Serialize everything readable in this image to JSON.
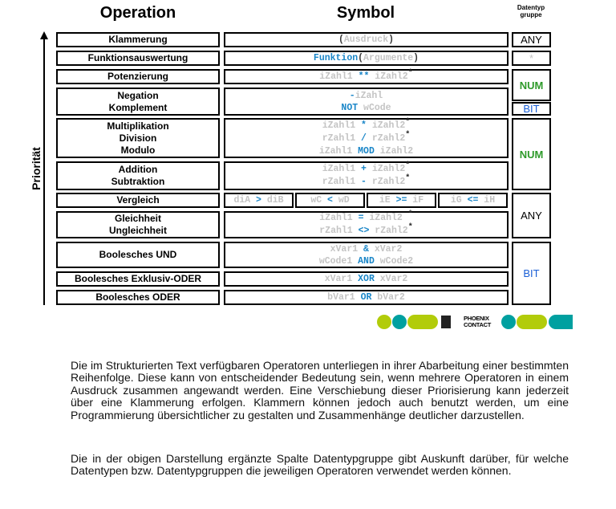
{
  "headers": {
    "operation": "Operation",
    "symbol": "Symbol",
    "type": "Datentyp gruppe"
  },
  "axis_label": "Priorität",
  "operations": [
    "Klammerung",
    "Funktionsauswertung",
    "Potenzierung",
    "Negation\nKomplement",
    "Multiplikation\nDivision\nModulo",
    "Addition\nSubtraktion",
    "Vergleich",
    "Gleichheit\nUngleichheit",
    "Boolesches UND",
    "Boolesches Exklusiv-ODER",
    "Boolesches ODER"
  ],
  "symbols": [
    [
      [
        [
          "p",
          "("
        ],
        [
          "v",
          "Ausdruck"
        ],
        [
          "p",
          ")"
        ]
      ]
    ],
    [
      [
        [
          "o",
          "Funktion"
        ],
        [
          "p",
          "("
        ],
        [
          "v",
          "Argumente"
        ],
        [
          "p",
          ")"
        ]
      ]
    ],
    [
      [
        [
          "v",
          "iZahl1 "
        ],
        [
          "o",
          "**"
        ],
        [
          "v",
          " iZahl2"
        ],
        [
          "s",
          "*"
        ]
      ]
    ],
    [
      [
        [
          "o",
          "-"
        ],
        [
          "v",
          "iZahl"
        ]
      ],
      [
        [
          "o",
          "NOT"
        ],
        [
          "v",
          " wCode"
        ]
      ]
    ],
    [
      [
        [
          "v",
          "iZahl1 "
        ],
        [
          "o",
          "*"
        ],
        [
          "v",
          " iZahl2"
        ],
        [
          "s",
          "*"
        ]
      ],
      [
        [
          "v",
          "rZahl1 "
        ],
        [
          "o",
          "/"
        ],
        [
          "v",
          " rZahl2"
        ],
        [
          "s",
          "*"
        ]
      ],
      [
        [
          "v",
          "iZahl1 "
        ],
        [
          "o",
          "MOD"
        ],
        [
          "v",
          " iZahl2"
        ]
      ]
    ],
    [
      [
        [
          "v",
          "iZahl1 "
        ],
        [
          "o",
          "+"
        ],
        [
          "v",
          " iZahl2"
        ],
        [
          "s",
          "*"
        ]
      ],
      [
        [
          "v",
          "rZahl1 "
        ],
        [
          "o",
          "-"
        ],
        [
          "v",
          " rZahl2"
        ],
        [
          "s",
          "*"
        ]
      ]
    ],
    [],
    [
      [
        [
          "v",
          "iZahl1 "
        ],
        [
          "o",
          "="
        ],
        [
          "v",
          " iZahl2 "
        ],
        [
          "s",
          "*"
        ]
      ],
      [
        [
          "v",
          "rZahl1 "
        ],
        [
          "o",
          "<>"
        ],
        [
          "v",
          " rZahl2"
        ],
        [
          "s",
          "*"
        ]
      ]
    ],
    [
      [
        [
          "v",
          "xVar1 "
        ],
        [
          "o",
          "&"
        ],
        [
          "v",
          " xVar2"
        ]
      ],
      [
        [
          "v",
          "wCode1 "
        ],
        [
          "o",
          "AND"
        ],
        [
          "v",
          " wCode2"
        ]
      ]
    ],
    [
      [
        [
          "v",
          "xVar1 "
        ],
        [
          "o",
          "XOR"
        ],
        [
          "v",
          " xVar2"
        ]
      ]
    ],
    [
      [
        [
          "v",
          "bVar1 "
        ],
        [
          "o",
          "OR"
        ],
        [
          "v",
          " bVar2"
        ]
      ]
    ]
  ],
  "comparisons": [
    [
      [
        "v",
        "diA "
      ],
      [
        "o",
        ">"
      ],
      [
        "v",
        " diB"
      ]
    ],
    [
      [
        "v",
        "wC "
      ],
      [
        "o",
        "<"
      ],
      [
        "v",
        " wD"
      ]
    ],
    [
      [
        "v",
        "iE "
      ],
      [
        "o",
        ">="
      ],
      [
        "v",
        " iF"
      ]
    ],
    [
      [
        "v",
        "iG "
      ],
      [
        "o",
        "<="
      ],
      [
        "v",
        " iH"
      ]
    ]
  ],
  "types": {
    "klammer": "ANY",
    "funktion": "*",
    "potenz": "NUM",
    "komplement": "BIT",
    "arith": "NUM",
    "vergleich": "ANY",
    "bool": "BIT"
  },
  "logo": "PHOENIX CONTACT",
  "colors": {
    "operator": "#1a86c8",
    "variable": "#c4c4c4",
    "num": "#2e9a2a",
    "bit": "#1a5fd6",
    "logo_green": "#b2cc0a",
    "logo_teal": "#00a0a0"
  },
  "paragraphs": [
    "Die im Strukturierten Text verfügbaren Operatoren unterliegen in ihrer Abarbeitung einer bestimmten Reihenfolge. Diese kann von entscheidender Bedeutung sein, wenn mehrere Operatoren in einem Ausdruck zusammen angewandt werden. Eine Verschiebung dieser Priorisierung kann jederzeit über eine Klammerung erfolgen. Klammern können jedoch auch benutzt werden, um eine Programmierung übersichtlicher zu gestalten und Zusammenhänge deutlicher darzustellen.",
    "Die in der obigen Darstellung ergänzte Spalte Datentypgruppe gibt Auskunft darüber, für welche Datentypen bzw. Datentypgruppen die jeweiligen Operatoren verwendet werden können."
  ]
}
